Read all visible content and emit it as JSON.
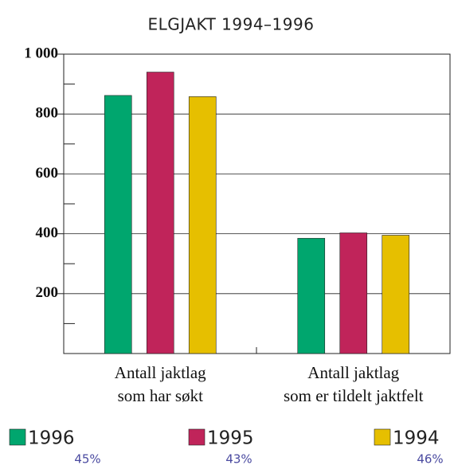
{
  "chart_data": {
    "type": "bar",
    "title": "ELGJAKT 1994–1996",
    "categories": [
      [
        "Antall jaktlag",
        "som har søkt"
      ],
      [
        "Antall jaktlag",
        "som er tildelt jaktfelt"
      ]
    ],
    "series": [
      {
        "name": "1996",
        "color": "#00a66e",
        "values": [
          862,
          385
        ],
        "share": "45%"
      },
      {
        "name": "1995",
        "color": "#c0245a",
        "values": [
          940,
          403
        ],
        "share": "43%"
      },
      {
        "name": "1994",
        "color": "#e6bf00",
        "values": [
          858,
          395
        ],
        "share": "46%"
      }
    ],
    "ylim": [
      0,
      1000
    ],
    "yticks": [
      200,
      400,
      600,
      800,
      {
        "value": 1000,
        "label": "1 000"
      }
    ],
    "minor_yticks": [
      100,
      300,
      500,
      700,
      900
    ],
    "grid": true
  }
}
